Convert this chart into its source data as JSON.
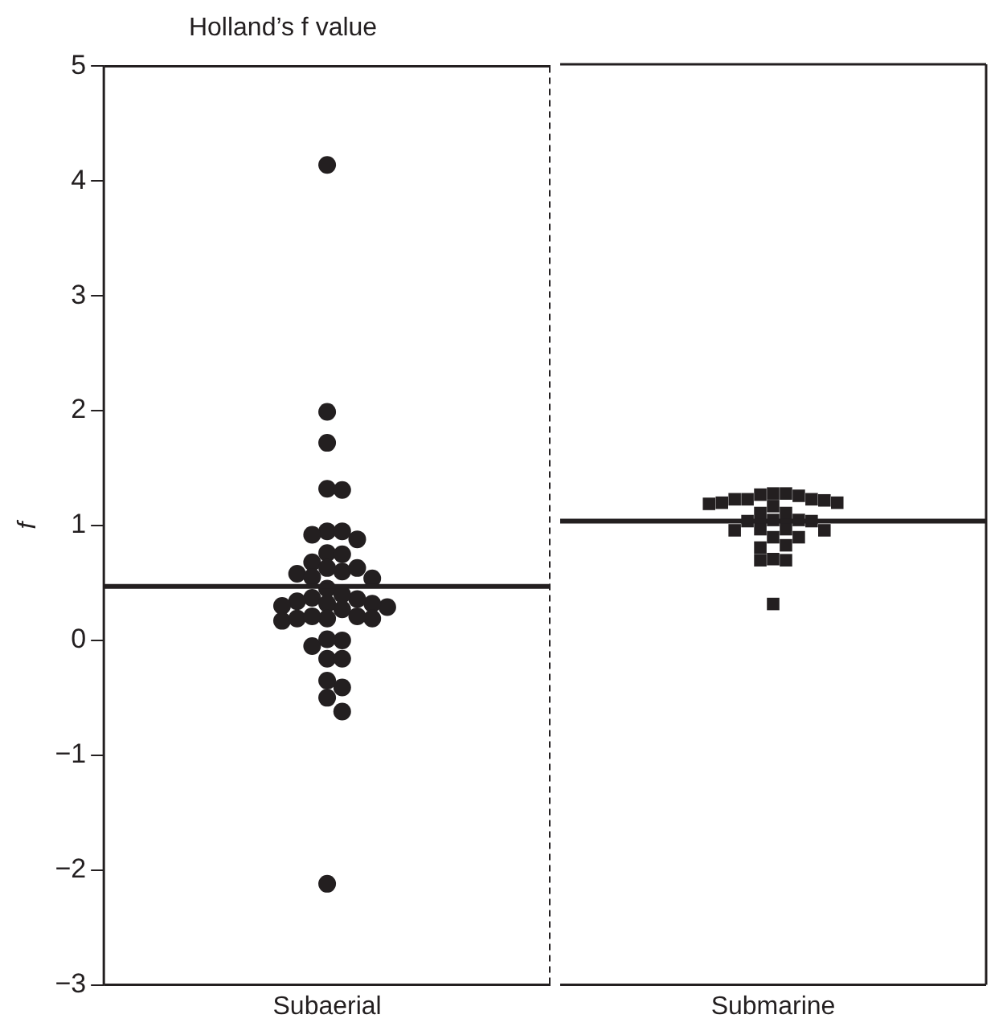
{
  "chart_data": [
    {
      "type": "scatter",
      "title": "Holland’s f value",
      "ylabel": "f",
      "categories": [
        "Subaerial"
      ],
      "ylim": [
        -3,
        5
      ],
      "yticks": [
        -3,
        -2,
        -1,
        0,
        1,
        2,
        3,
        4,
        5
      ],
      "legend": false,
      "ref_lines": [
        {
          "axis": "y",
          "value": 0.47,
          "color": "#231f20"
        }
      ],
      "series": [
        {
          "marker": "circle",
          "color": "#231f20",
          "x": [
            "Subaerial",
            "Subaerial",
            "Subaerial",
            "Subaerial",
            "Subaerial",
            "Subaerial",
            "Subaerial",
            "Subaerial",
            "Subaerial",
            "Subaerial",
            "Subaerial",
            "Subaerial",
            "Subaerial",
            "Subaerial",
            "Subaerial",
            "Subaerial",
            "Subaerial",
            "Subaerial",
            "Subaerial",
            "Subaerial",
            "Subaerial",
            "Subaerial",
            "Subaerial",
            "Subaerial",
            "Subaerial",
            "Subaerial",
            "Subaerial",
            "Subaerial",
            "Subaerial",
            "Subaerial",
            "Subaerial",
            "Subaerial",
            "Subaerial",
            "Subaerial",
            "Subaerial",
            "Subaerial",
            "Subaerial",
            "Subaerial",
            "Subaerial",
            "Subaerial",
            "Subaerial",
            "Subaerial",
            "Subaerial",
            "Subaerial"
          ],
          "values": [
            4.14,
            1.99,
            1.72,
            1.32,
            1.31,
            0.95,
            0.88,
            0.92,
            0.95,
            0.76,
            0.68,
            0.63,
            0.58,
            0.54,
            0.55,
            0.6,
            0.63,
            0.75,
            0.45,
            0.37,
            0.34,
            0.32,
            0.3,
            0.27,
            0.29,
            0.32,
            0.36,
            0.4,
            0.19,
            0.17,
            0.19,
            0.21,
            0.0,
            -0.05,
            0.01,
            -0.16,
            -0.16,
            -0.35,
            -0.41,
            -0.5,
            -0.62,
            -2.12,
            0.19,
            0.21
          ]
        }
      ]
    },
    {
      "type": "scatter",
      "categories": [
        "Submarine"
      ],
      "ylim": [
        -3,
        5
      ],
      "yticks": [
        -3,
        -2,
        -1,
        0,
        1,
        2,
        3,
        4,
        5
      ],
      "tick_labels": "x",
      "legend": false,
      "ref_lines": [
        {
          "axis": "y",
          "value": 1.03,
          "color": "#231f20"
        }
      ],
      "series": [
        {
          "marker": "square",
          "color": "#231f20",
          "x": [
            "Submarine",
            "Submarine",
            "Submarine",
            "Submarine",
            "Submarine",
            "Submarine",
            "Submarine",
            "Submarine",
            "Submarine",
            "Submarine",
            "Submarine",
            "Submarine",
            "Submarine",
            "Submarine",
            "Submarine",
            "Submarine",
            "Submarine",
            "Submarine",
            "Submarine",
            "Submarine",
            "Submarine",
            "Submarine",
            "Submarine",
            "Submarine",
            "Submarine",
            "Submarine",
            "Submarine",
            "Submarine",
            "Submarine",
            "Submarine"
          ],
          "values": [
            1.18,
            1.1,
            1.27,
            1.25,
            1.22,
            1.22,
            1.21,
            1.22,
            1.26,
            1.27,
            1.1,
            1.16,
            1.19,
            1.19,
            1.04,
            1.03,
            0.89,
            0.96,
            0.95,
            0.95,
            0.96,
            1.03,
            1.04,
            0.89,
            0.82,
            0.8,
            0.69,
            0.69,
            0.7,
            0.31
          ]
        }
      ]
    }
  ]
}
